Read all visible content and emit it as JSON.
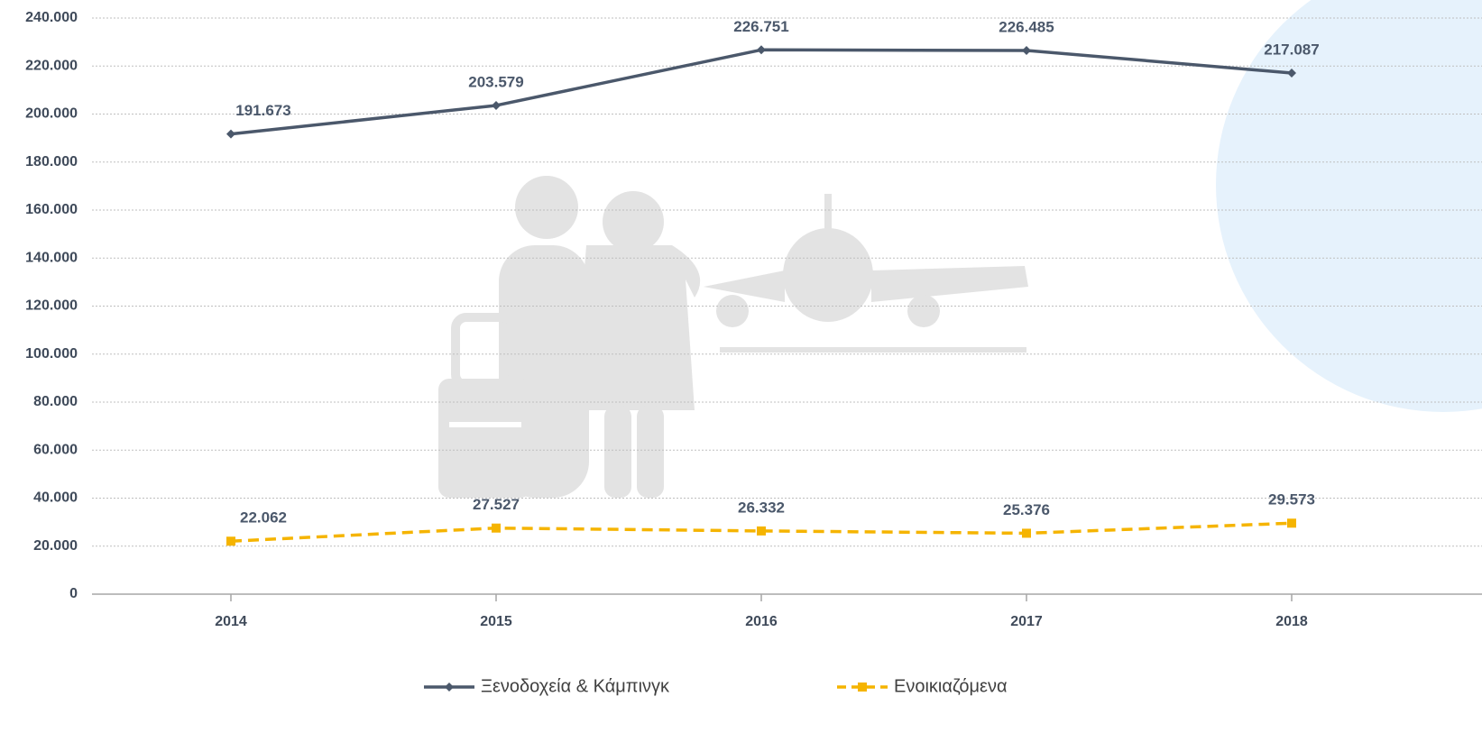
{
  "chart_data": {
    "type": "line",
    "categories": [
      "2014",
      "2015",
      "2016",
      "2017",
      "2018"
    ],
    "series": [
      {
        "name": "Ξενοδοχεία & Κάμπινγκ",
        "color": "#4b586b",
        "marker": "diamond",
        "line_style": "solid",
        "values": [
          191673,
          203579,
          226751,
          226485,
          217087
        ],
        "value_labels": [
          "191.673",
          "203.579",
          "226.751",
          "226.485",
          "217.087"
        ]
      },
      {
        "name": "Ενοικιαζόμενα",
        "color": "#f5b400",
        "marker": "square",
        "line_style": "dashed",
        "values": [
          22062,
          27527,
          26332,
          25376,
          29573
        ],
        "value_labels": [
          "22.062",
          "27.527",
          "26.332",
          "25.376",
          "29.573"
        ]
      }
    ],
    "ylim": [
      0,
      240000
    ],
    "yticks": [
      0,
      {
        "value": 20000,
        "label": "20.000"
      },
      {
        "value": 40000,
        "label": "40.000"
      },
      {
        "value": 60000,
        "label": "60.000"
      },
      {
        "value": 80000,
        "label": "80.000"
      },
      {
        "value": 100000,
        "label": "100.000"
      },
      {
        "value": 120000,
        "label": "120.000"
      },
      {
        "value": 140000,
        "label": "140.000"
      },
      {
        "value": 160000,
        "label": "160.000"
      },
      {
        "value": 180000,
        "label": "180.000"
      },
      {
        "value": 200000,
        "label": "200.000"
      },
      {
        "value": 220000,
        "label": "220.000"
      },
      {
        "value": 240000,
        "label": "240.000"
      }
    ],
    "grid": true,
    "legend": "bottom"
  }
}
